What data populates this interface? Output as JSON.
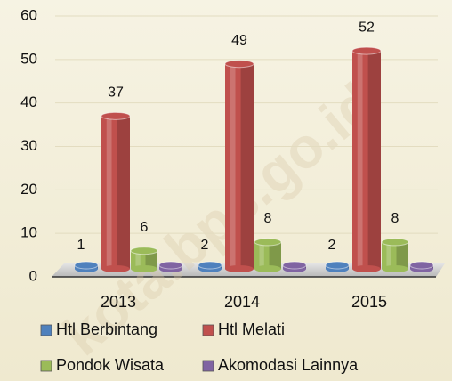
{
  "chart_data": {
    "type": "bar3d",
    "categories": [
      "2013",
      "2014",
      "2015"
    ],
    "series": [
      {
        "name": "Htl Berbintang",
        "color": "#4f81bd",
        "values": [
          1,
          2,
          2
        ],
        "data_labels": true
      },
      {
        "name": "Htl Melati",
        "color": "#c0504d",
        "values": [
          37,
          49,
          52
        ],
        "data_labels": true
      },
      {
        "name": "Pondok Wisata",
        "color": "#9bbb59",
        "values": [
          6,
          8,
          8
        ],
        "data_labels": true
      },
      {
        "name": "Akomodasi Lainnya",
        "color": "#8064a2",
        "values": [
          1,
          1,
          1
        ],
        "data_labels": false
      }
    ],
    "ylim": [
      0,
      60
    ],
    "yticks": [
      0,
      10,
      20,
      30,
      40,
      50,
      60
    ],
    "grid": true,
    "legend": "bottom",
    "watermark": "kota.bps.go.id"
  }
}
